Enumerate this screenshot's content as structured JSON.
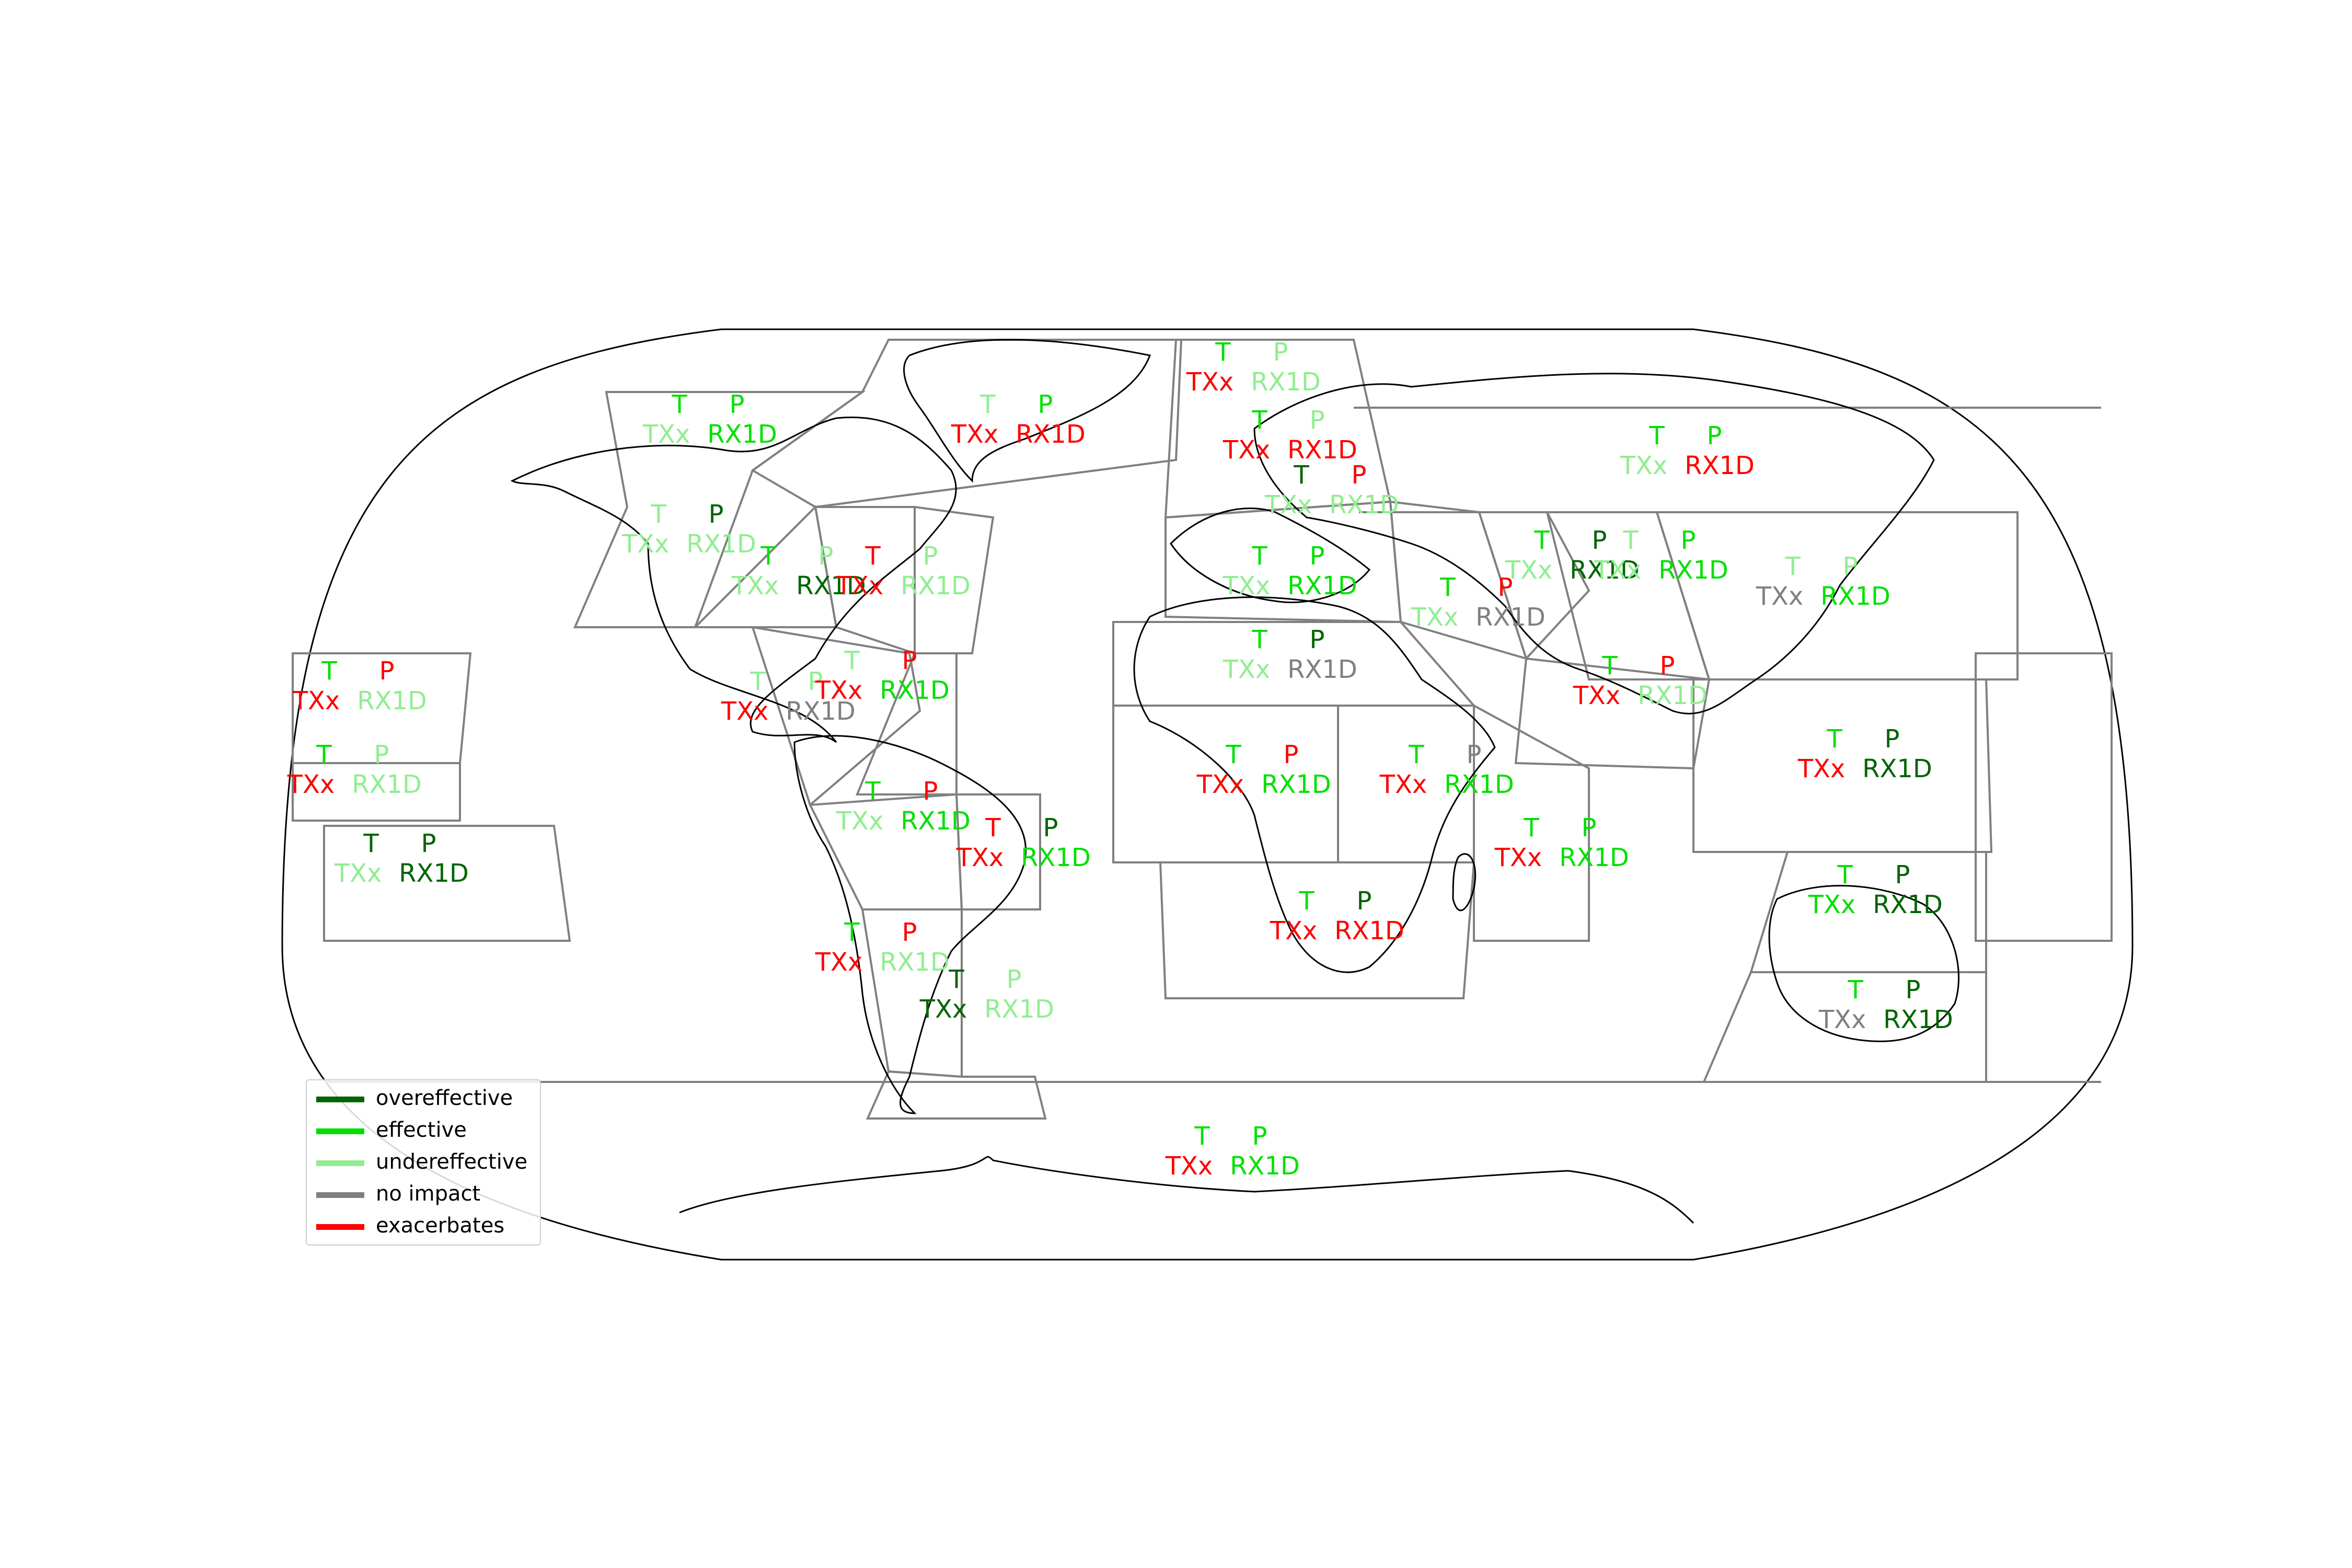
{
  "legend": {
    "items": [
      {
        "label": "overeffective",
        "color": "#006400"
      },
      {
        "label": "effective",
        "color": "#00e000"
      },
      {
        "label": "undereffective",
        "color": "#90ee90"
      },
      {
        "label": "no impact",
        "color": "#808080"
      },
      {
        "label": "exacerbates",
        "color": "#ff0000"
      }
    ]
  },
  "colors": {
    "overeffective": "#006400",
    "effective": "#00e000",
    "undereffective": "#90ee90",
    "no_impact": "#808080",
    "exacerbates": "#ff0000"
  },
  "labels": {
    "t": "T",
    "p": "P",
    "txx": "TXx",
    "rx1d": "RX1D"
  },
  "regions": [
    {
      "id": "NWN",
      "T": "effective",
      "P": "effective",
      "TXx": "undereffective",
      "RX1D": "effective"
    },
    {
      "id": "NEN",
      "T": "undereffective",
      "P": "effective",
      "TXx": "exacerbates",
      "RX1D": "exacerbates"
    },
    {
      "id": "GIC",
      "T": "effective",
      "P": "undereffective",
      "TXx": "exacerbates",
      "RX1D": "undereffective"
    },
    {
      "id": "NEU",
      "T": "effective",
      "P": "undereffective",
      "TXx": "exacerbates",
      "RX1D": "exacerbates"
    },
    {
      "id": "RAR",
      "T": "effective",
      "P": "effective",
      "TXx": "undereffective",
      "RX1D": "exacerbates"
    },
    {
      "id": "WNA",
      "T": "undereffective",
      "P": "overeffective",
      "TXx": "undereffective",
      "RX1D": "undereffective"
    },
    {
      "id": "CNA",
      "T": "effective",
      "P": "undereffective",
      "TXx": "undereffective",
      "RX1D": "overeffective"
    },
    {
      "id": "ENA",
      "T": "exacerbates",
      "P": "undereffective",
      "TXx": "exacerbates",
      "RX1D": "undereffective"
    },
    {
      "id": "WCE",
      "T": "overeffective",
      "P": "exacerbates",
      "TXx": "undereffective",
      "RX1D": "undereffective"
    },
    {
      "id": "MED",
      "T": "effective",
      "P": "effective",
      "TXx": "undereffective",
      "RX1D": "effective"
    },
    {
      "id": "WSB",
      "T": "effective",
      "P": "overeffective",
      "TXx": "undereffective",
      "RX1D": "overeffective"
    },
    {
      "id": "ESB",
      "T": "undereffective",
      "P": "effective",
      "TXx": "undereffective",
      "RX1D": "effective"
    },
    {
      "id": "WCA",
      "T": "effective",
      "P": "exacerbates",
      "TXx": "undereffective",
      "RX1D": "no_impact"
    },
    {
      "id": "EAS",
      "T": "undereffective",
      "P": "undereffective",
      "TXx": "no_impact",
      "RX1D": "effective"
    },
    {
      "id": "SAS",
      "T": "effective",
      "P": "exacerbates",
      "TXx": "exacerbates",
      "RX1D": "undereffective"
    },
    {
      "id": "SAH",
      "T": "effective",
      "P": "overeffective",
      "TXx": "undereffective",
      "RX1D": "no_impact"
    },
    {
      "id": "NCA",
      "T": "undereffective",
      "P": "undereffective",
      "TXx": "exacerbates",
      "RX1D": "no_impact"
    },
    {
      "id": "CAR",
      "T": "undereffective",
      "P": "exacerbates",
      "TXx": "exacerbates",
      "RX1D": "effective"
    },
    {
      "id": "NWS",
      "T": "effective",
      "P": "exacerbates",
      "TXx": "undereffective",
      "RX1D": "effective"
    },
    {
      "id": "NES",
      "T": "exacerbates",
      "P": "overeffective",
      "TXx": "exacerbates",
      "RX1D": "effective"
    },
    {
      "id": "WAF",
      "T": "effective",
      "P": "exacerbates",
      "TXx": "exacerbates",
      "RX1D": "effective"
    },
    {
      "id": "EAF",
      "T": "effective",
      "P": "no_impact",
      "TXx": "exacerbates",
      "RX1D": "effective"
    },
    {
      "id": "MDG",
      "T": "effective",
      "P": "effective",
      "TXx": "exacerbates",
      "RX1D": "effective"
    },
    {
      "id": "SAF",
      "T": "effective",
      "P": "overeffective",
      "TXx": "exacerbates",
      "RX1D": "exacerbates"
    },
    {
      "id": "SEA",
      "T": "effective",
      "P": "overeffective",
      "TXx": "exacerbates",
      "RX1D": "overeffective"
    },
    {
      "id": "NAU",
      "T": "effective",
      "P": "overeffective",
      "TXx": "effective",
      "RX1D": "overeffective"
    },
    {
      "id": "SAU",
      "T": "effective",
      "P": "overeffective",
      "TXx": "no_impact",
      "RX1D": "overeffective"
    },
    {
      "id": "SWS",
      "T": "effective",
      "P": "exacerbates",
      "TXx": "exacerbates",
      "RX1D": "undereffective"
    },
    {
      "id": "SSA",
      "T": "overeffective",
      "P": "undereffective",
      "TXx": "overeffective",
      "RX1D": "undereffective"
    },
    {
      "id": "NPO",
      "T": "effective",
      "P": "exacerbates",
      "TXx": "exacerbates",
      "RX1D": "undereffective"
    },
    {
      "id": "EPO",
      "T": "effective",
      "P": "undereffective",
      "TXx": "exacerbates",
      "RX1D": "undereffective"
    },
    {
      "id": "SPO",
      "T": "overeffective",
      "P": "overeffective",
      "TXx": "undereffective",
      "RX1D": "overeffective"
    },
    {
      "id": "EAN",
      "T": "effective",
      "P": "effective",
      "TXx": "exacerbates",
      "RX1D": "effective"
    }
  ]
}
